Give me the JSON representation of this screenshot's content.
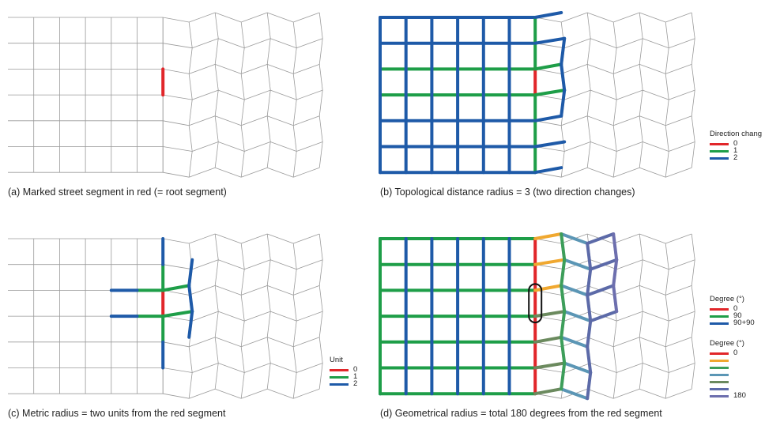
{
  "panels": {
    "a": {
      "caption": "(a) Marked street segment in red (= root segment)"
    },
    "b": {
      "caption": "(b) Topological distance radius = 3 (two direction changes)"
    },
    "c": {
      "caption": "(c) Metric radius = two units from the red segment"
    },
    "d": {
      "caption": "(d) Geometrical radius = total 180 degrees from the red segment"
    }
  },
  "legends": {
    "b": {
      "title": "Direction chang",
      "items": [
        {
          "label": "0",
          "color": "#e1262a"
        },
        {
          "label": "1",
          "color": "#1e9e48"
        },
        {
          "label": "2",
          "color": "#1e5aa8"
        }
      ]
    },
    "c": {
      "title": "Unit",
      "items": [
        {
          "label": "0",
          "color": "#e1262a"
        },
        {
          "label": "1",
          "color": "#1e9e48"
        },
        {
          "label": "2",
          "color": "#1e5aa8"
        }
      ]
    },
    "d1": {
      "title": "Degree (°)",
      "items": [
        {
          "label": "0",
          "color": "#e1262a"
        },
        {
          "label": "90",
          "color": "#1e9e48"
        },
        {
          "label": "90+90",
          "color": "#1e5aa8"
        }
      ]
    },
    "d2": {
      "title": "Degree (°)",
      "items": [
        {
          "label": "0",
          "color": "#e1262a"
        },
        {
          "label": "",
          "color": "#f0a830"
        },
        {
          "label": "",
          "color": "#3d9e5a"
        },
        {
          "label": "",
          "color": "#5b96b5"
        },
        {
          "label": "",
          "color": "#6b8a5e"
        },
        {
          "label": "",
          "color": "#5c6aa8"
        },
        {
          "label": "180",
          "color": "#6d6fae"
        }
      ]
    }
  },
  "colors": {
    "red": "#e1262a",
    "green": "#1e9e48",
    "blue": "#1e5aa8",
    "grid": "#9a9a9a"
  }
}
